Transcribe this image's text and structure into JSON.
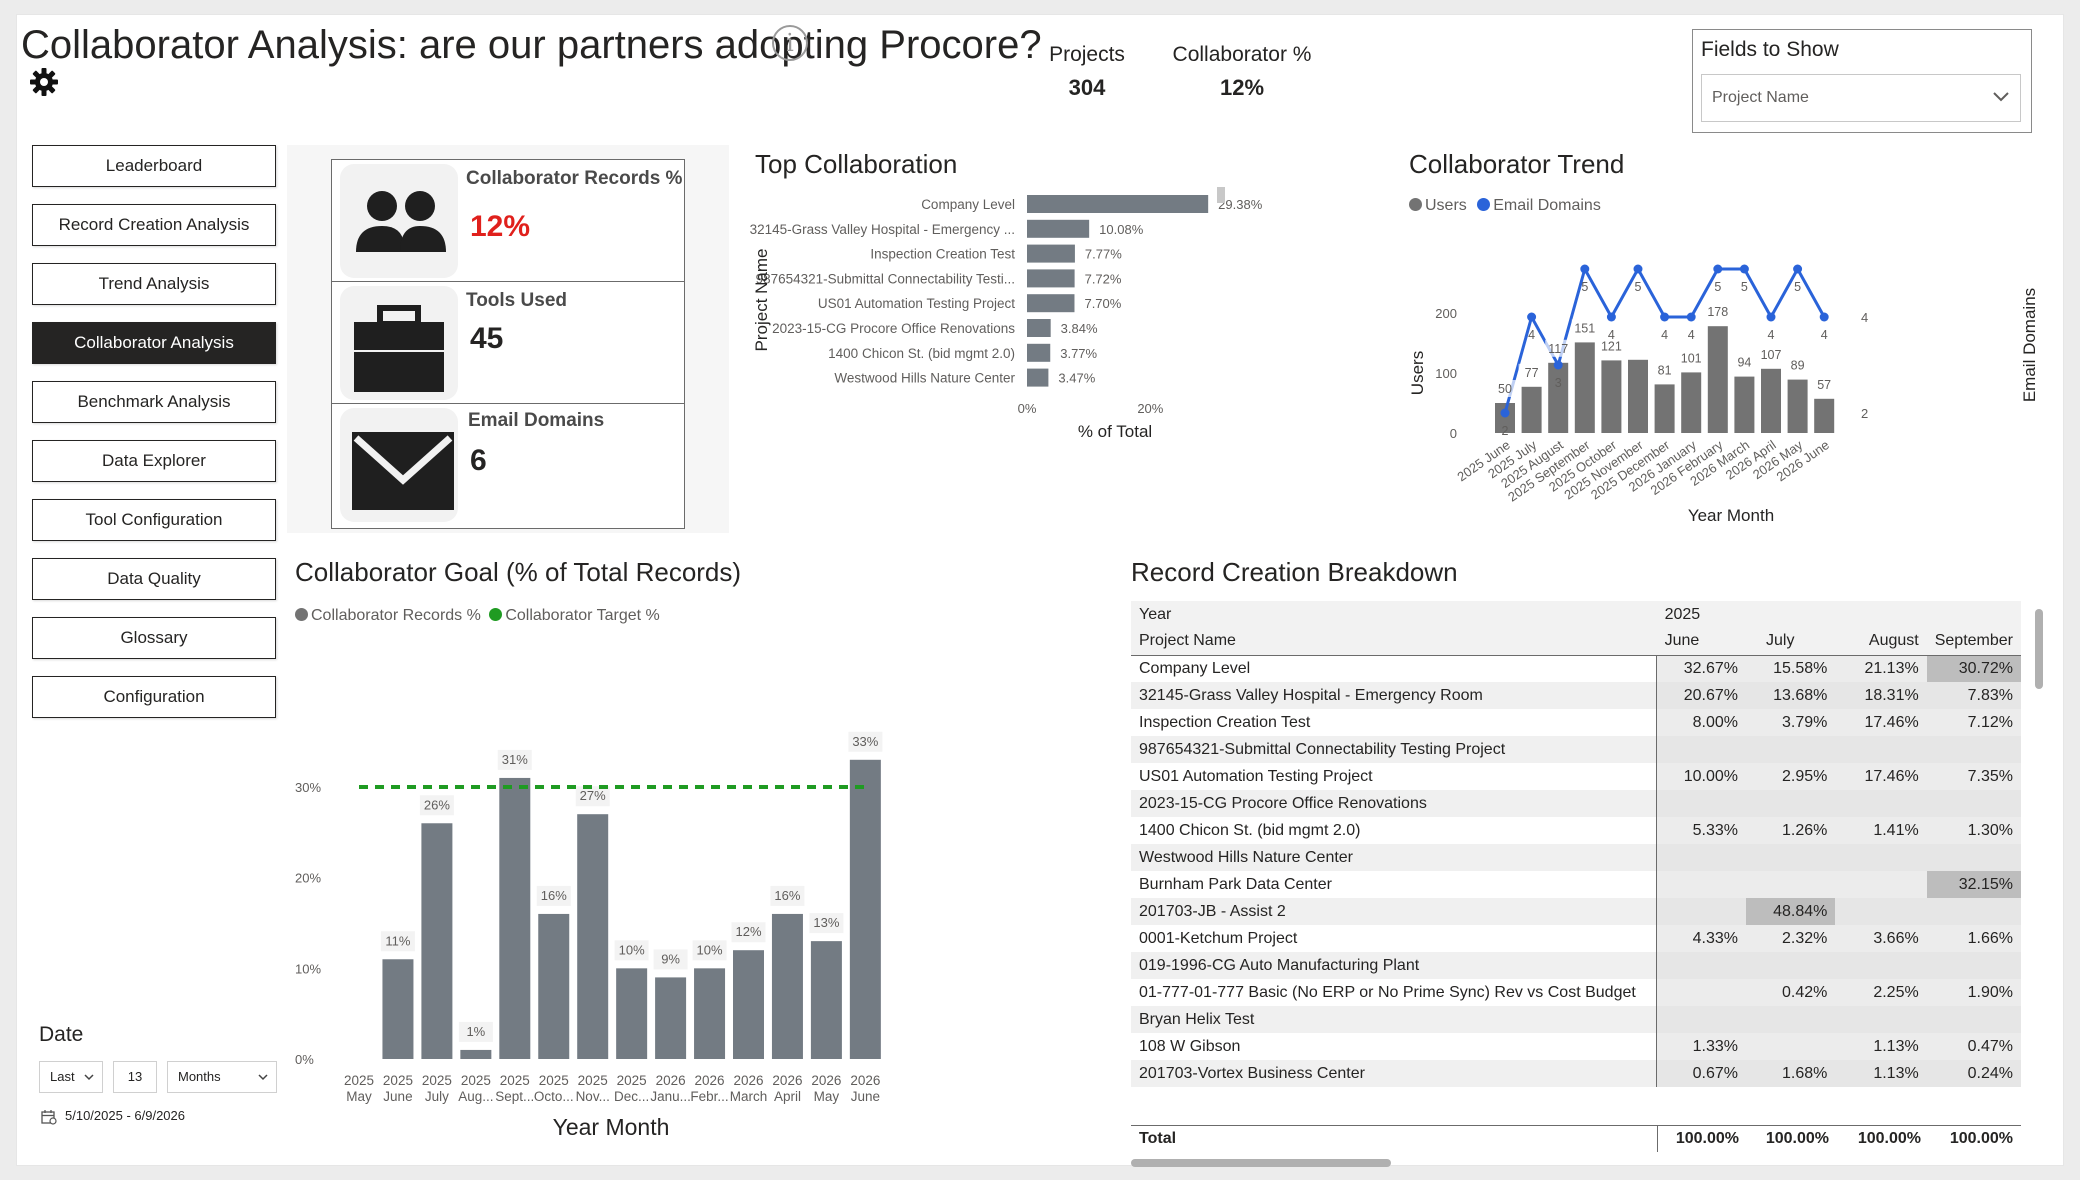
{
  "header": {
    "title": "Collaborator Analysis: are our partners adopting Procore?",
    "kpis": [
      {
        "label": "Projects",
        "value": "304"
      },
      {
        "label": "Collaborator %",
        "value": "12%"
      }
    ],
    "fields_slicer": {
      "label": "Fields to Show",
      "value": "Project Name"
    }
  },
  "nav": {
    "items": [
      {
        "label": "Leaderboard",
        "active": false
      },
      {
        "label": "Record Creation Analysis",
        "active": false
      },
      {
        "label": "Trend Analysis",
        "active": false
      },
      {
        "label": "Collaborator Analysis",
        "active": true
      },
      {
        "label": "Benchmark Analysis",
        "active": false
      },
      {
        "label": "Data Explorer",
        "active": false
      },
      {
        "label": "Tool Configuration",
        "active": false
      },
      {
        "label": "Data Quality",
        "active": false
      },
      {
        "label": "Glossary",
        "active": false
      },
      {
        "label": "Configuration",
        "active": false
      }
    ]
  },
  "date_filter": {
    "label": "Date",
    "mode": "Last",
    "count": "13",
    "unit": "Months",
    "range": "5/10/2025 - 6/9/2026"
  },
  "cards": [
    {
      "label": "Collaborator Records %",
      "value": "12%",
      "icon": "people-icon",
      "value_color": "#e0201c"
    },
    {
      "label": "Tools Used",
      "value": "45",
      "icon": "briefcase-icon",
      "value_color": "#252423"
    },
    {
      "label": "Email Domains",
      "value": "6",
      "icon": "envelope-icon",
      "value_color": "#252423"
    }
  ],
  "top_collab": {
    "title": "Top Collaboration",
    "ylabel": "Project Name",
    "xlabel": "% of Total",
    "ticks": [
      "0%",
      "20%"
    ]
  },
  "trend": {
    "title": "Collaborator Trend",
    "legend": [
      {
        "name": "Users",
        "color": "#737373"
      },
      {
        "name": "Email Domains",
        "color": "#2a63d9"
      }
    ],
    "ylabel_left": "Users",
    "ylabel_right": "Email Domains",
    "xlabel": "Year Month",
    "left_ticks": [
      "0",
      "100",
      "200"
    ],
    "right_ticks": [
      "2",
      "4"
    ]
  },
  "goal": {
    "title": "Collaborator Goal (% of Total Records)",
    "legend": [
      {
        "name": "Collaborator Records %",
        "color": "#737373"
      },
      {
        "name": "Collaborator Target %",
        "color": "#1f9b22"
      }
    ],
    "xlabel": "Year Month",
    "y_ticks": [
      "0%",
      "10%",
      "20%",
      "30%"
    ]
  },
  "rcb": {
    "title": "Record Creation Breakdown",
    "header_year_label": "Year",
    "header_year_value": "2025",
    "header_row_label": "Project Name",
    "columns": [
      "June",
      "July",
      "August",
      "September"
    ],
    "rows": [
      {
        "name": "Company Level",
        "vals": [
          "32.67%",
          "15.58%",
          "21.13%",
          "30.72%"
        ],
        "hl": [
          false,
          false,
          false,
          true
        ]
      },
      {
        "name": "32145-Grass Valley Hospital - Emergency Room",
        "vals": [
          "20.67%",
          "13.68%",
          "18.31%",
          "7.83%"
        ],
        "hl": [
          false,
          false,
          false,
          false
        ]
      },
      {
        "name": "Inspection Creation Test",
        "vals": [
          "8.00%",
          "3.79%",
          "17.46%",
          "7.12%"
        ],
        "hl": [
          false,
          false,
          false,
          false
        ]
      },
      {
        "name": "987654321-Submittal Connectability Testing Project",
        "vals": [
          "",
          "",
          "",
          ""
        ],
        "hl": [
          false,
          false,
          false,
          false
        ]
      },
      {
        "name": "US01 Automation Testing Project",
        "vals": [
          "10.00%",
          "2.95%",
          "17.46%",
          "7.35%"
        ],
        "hl": [
          false,
          false,
          false,
          false
        ]
      },
      {
        "name": "2023-15-CG Procore Office Renovations",
        "vals": [
          "",
          "",
          "",
          ""
        ],
        "hl": [
          false,
          false,
          false,
          false
        ]
      },
      {
        "name": "1400 Chicon St. (bid mgmt 2.0)",
        "vals": [
          "5.33%",
          "1.26%",
          "1.41%",
          "1.30%"
        ],
        "hl": [
          false,
          false,
          false,
          false
        ]
      },
      {
        "name": "Westwood Hills Nature Center",
        "vals": [
          "",
          "",
          "",
          ""
        ],
        "hl": [
          false,
          false,
          false,
          false
        ]
      },
      {
        "name": "Burnham Park Data Center",
        "vals": [
          "",
          "",
          "",
          "32.15%"
        ],
        "hl": [
          false,
          false,
          false,
          true
        ]
      },
      {
        "name": "201703-JB - Assist 2",
        "vals": [
          "",
          "48.84%",
          "",
          ""
        ],
        "hl": [
          false,
          true,
          false,
          false
        ]
      },
      {
        "name": "0001-Ketchum Project",
        "vals": [
          "4.33%",
          "2.32%",
          "3.66%",
          "1.66%"
        ],
        "hl": [
          false,
          false,
          false,
          false
        ]
      },
      {
        "name": "019-1996-CG Auto Manufacturing Plant",
        "vals": [
          "",
          "",
          "",
          ""
        ],
        "hl": [
          false,
          false,
          false,
          false
        ]
      },
      {
        "name": "01-777-01-777 Basic (No ERP or No Prime Sync) Rev vs Cost Budget",
        "vals": [
          "",
          "0.42%",
          "2.25%",
          "1.90%"
        ],
        "hl": [
          false,
          false,
          false,
          false
        ]
      },
      {
        "name": "Bryan Helix Test",
        "vals": [
          "",
          "",
          "",
          ""
        ],
        "hl": [
          false,
          false,
          false,
          false
        ]
      },
      {
        "name": "108 W Gibson",
        "vals": [
          "1.33%",
          "",
          "1.13%",
          "0.47%"
        ],
        "hl": [
          false,
          false,
          false,
          false
        ]
      },
      {
        "name": "201703-Vortex Business Center",
        "vals": [
          "0.67%",
          "1.68%",
          "1.13%",
          "0.24%"
        ],
        "hl": [
          false,
          false,
          false,
          false
        ]
      }
    ],
    "total": {
      "name": "Total",
      "vals": [
        "100.00%",
        "100.00%",
        "100.00%",
        "100.00%"
      ]
    }
  },
  "chart_data": [
    {
      "type": "bar",
      "orientation": "horizontal",
      "title": "Top Collaboration",
      "xlabel": "% of Total",
      "ylabel": "Project Name",
      "categories": [
        "Company Level",
        "32145-Grass Valley Hospital - Emergency ...",
        "Inspection Creation Test",
        "987654321-Submittal Connectability Testi...",
        "US01 Automation Testing Project",
        "2023-15-CG Procore Office Renovations",
        "1400 Chicon St. (bid mgmt 2.0)",
        "Westwood Hills Nature Center"
      ],
      "values": [
        29.38,
        10.08,
        7.77,
        7.72,
        7.7,
        3.84,
        3.77,
        3.47
      ],
      "labels": [
        "29.38%",
        "10.08%",
        "7.77%",
        "7.72%",
        "7.70%",
        "3.84%",
        "3.77%",
        "3.47%"
      ],
      "xlim": [
        0,
        30
      ],
      "bar_color": "#737b83"
    },
    {
      "type": "bar",
      "title": "Collaborator Trend",
      "xlabel": "Year Month",
      "categories": [
        "2025 June",
        "2025 July",
        "2025 August",
        "2025 September",
        "2025 October",
        "2025 November",
        "2025 December",
        "2026 January",
        "2026 February",
        "2026 March",
        "2026 April",
        "2026 May",
        "2026 June"
      ],
      "series": [
        {
          "name": "Users",
          "type": "bar",
          "axis": "left",
          "values": [
            50,
            77,
            117,
            151,
            121,
            122,
            81,
            101,
            178,
            94,
            107,
            89,
            57
          ],
          "labels": [
            "50",
            "77",
            "117",
            "151",
            "121",
            "",
            "81",
            "101",
            "178",
            "94",
            "107",
            "89",
            "57"
          ]
        },
        {
          "name": "Email Domains",
          "type": "line",
          "axis": "right",
          "values": [
            2,
            4,
            3,
            5,
            4,
            5,
            4,
            4,
            5,
            5,
            4,
            5,
            4
          ],
          "labels": [
            "2",
            "4",
            "3",
            "5",
            "4",
            "5",
            "4",
            "4",
            "5",
            "5",
            "4",
            "5",
            "4"
          ]
        }
      ],
      "ylim_left": [
        0,
        200
      ],
      "ylim_right": [
        2,
        5
      ]
    },
    {
      "type": "bar",
      "title": "Collaborator Goal (% of Total Records)",
      "xlabel": "Year Month",
      "categories": [
        "2025 May",
        "2025 June",
        "2025 July",
        "2025 Aug...",
        "2025 Sept...",
        "2025 Octo...",
        "2025 Nov...",
        "2025 Dec...",
        "2026 Janu...",
        "2026 Febr...",
        "2026 March",
        "2026 April",
        "2026 May",
        "2026 June"
      ],
      "series": [
        {
          "name": "Collaborator Records %",
          "values": [
            null,
            11,
            26,
            1,
            31,
            16,
            27,
            10,
            9,
            10,
            12,
            16,
            13,
            33
          ],
          "labels": [
            "",
            "11%",
            "26%",
            "1%",
            "31%",
            "16%",
            "27%",
            "10%",
            "9%",
            "10%",
            "12%",
            "16%",
            "13%",
            "33%"
          ]
        },
        {
          "name": "Collaborator Target %",
          "type": "line",
          "value": 30
        }
      ],
      "ylim": [
        0,
        35
      ]
    }
  ]
}
